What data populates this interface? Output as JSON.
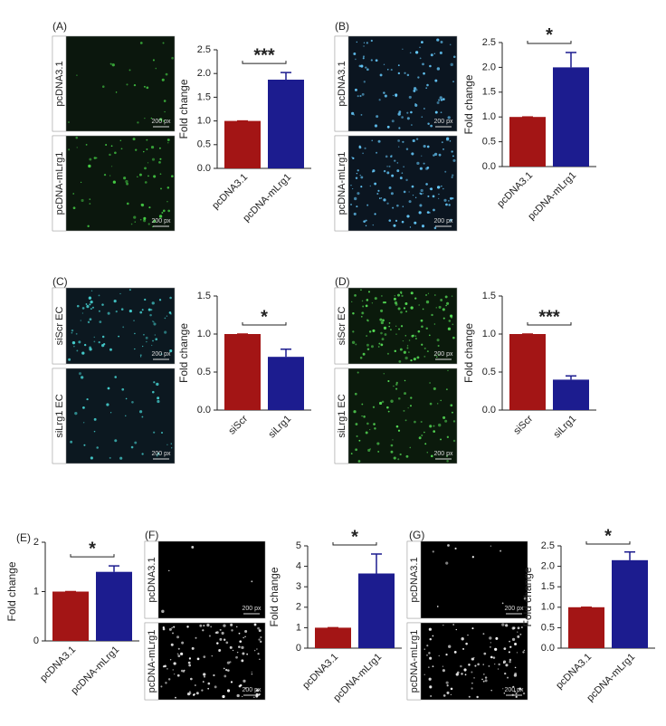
{
  "chart_data": [
    {
      "type": "bar",
      "panel": "(A)",
      "ylabel": "Fold change",
      "categories": [
        "pcDNA3.1",
        "pcDNA-mLrg1"
      ],
      "values": [
        1,
        1.87
      ],
      "errors": [
        0,
        0.15
      ],
      "colors": [
        "#a31515",
        "#1c1c8f"
      ],
      "ylim": [
        0,
        2.5
      ],
      "yticks": [
        {
          "value": 0,
          "label": "0.0"
        },
        0.5,
        {
          "value": 1,
          "label": "1.0"
        },
        1.5,
        {
          "value": 2,
          "label": "2.0"
        },
        2.5
      ],
      "significance": "***",
      "images": [
        {
          "label": "pcDNA3.1",
          "scale_bar": "200 px"
        },
        {
          "label": "pcDNA-mLrg1",
          "scale_bar": "200 px"
        }
      ]
    },
    {
      "type": "bar",
      "panel": "(B)",
      "ylabel": "Fold change",
      "categories": [
        "pcDNA3.1",
        "pcDNA-mLrg1"
      ],
      "values": [
        1,
        2.0
      ],
      "errors": [
        0,
        0.3
      ],
      "colors": [
        "#a31515",
        "#1c1c8f"
      ],
      "ylim": [
        0,
        2.5
      ],
      "yticks": [
        {
          "value": 0,
          "label": "0.0"
        },
        0.5,
        {
          "value": 1,
          "label": "1.0"
        },
        1.5,
        {
          "value": 2,
          "label": "2.0"
        },
        2.5
      ],
      "significance": "*",
      "images": [
        {
          "label": "pcDNA3.1",
          "scale_bar": "200 px"
        },
        {
          "label": "pcDNA-mLrg1",
          "scale_bar": "200 px"
        }
      ]
    },
    {
      "type": "bar",
      "panel": "(C)",
      "ylabel": "Fold change",
      "categories": [
        "siScr",
        "siLrg1"
      ],
      "values": [
        1,
        0.7
      ],
      "errors": [
        0,
        0.1
      ],
      "colors": [
        "#a31515",
        "#1c1c8f"
      ],
      "ylim": [
        0,
        1.5
      ],
      "yticks": [
        {
          "value": 0,
          "label": "0.0"
        },
        0.5,
        {
          "value": 1,
          "label": "1.0"
        },
        1.5
      ],
      "significance": "*",
      "images": [
        {
          "label": "siScr EC",
          "scale_bar": "200 px"
        },
        {
          "label": "siLrg1 EC",
          "scale_bar": "200 px"
        }
      ]
    },
    {
      "type": "bar",
      "panel": "(D)",
      "ylabel": "Fold change",
      "categories": [
        "siScr",
        "siLrg1"
      ],
      "values": [
        1,
        0.4
      ],
      "errors": [
        0,
        0.05
      ],
      "colors": [
        "#a31515",
        "#1c1c8f"
      ],
      "ylim": [
        0,
        1.5
      ],
      "yticks": [
        {
          "value": 0,
          "label": "0.0"
        },
        0.5,
        {
          "value": 1,
          "label": "1.0"
        },
        1.5
      ],
      "significance": "***",
      "images": [
        {
          "label": "siScr EC",
          "scale_bar": "200 px"
        },
        {
          "label": "siLrg1 EC",
          "scale_bar": "200 px"
        }
      ]
    },
    {
      "type": "bar",
      "panel": "(E)",
      "ylabel": "Fold change",
      "categories": [
        "pcDNA3.1",
        "pcDNA-mLrg1"
      ],
      "values": [
        1,
        1.4
      ],
      "errors": [
        0,
        0.12
      ],
      "colors": [
        "#a31515",
        "#1c1c8f"
      ],
      "ylim": [
        0,
        2
      ],
      "yticks": [
        0,
        1,
        2
      ],
      "significance": "*"
    },
    {
      "type": "bar",
      "panel": "(F)",
      "ylabel": "Fold change",
      "categories": [
        "pcDNA3.1",
        "pcDNA-mLrg1"
      ],
      "values": [
        1,
        3.65
      ],
      "errors": [
        0,
        0.95
      ],
      "colors": [
        "#a31515",
        "#1c1c8f"
      ],
      "ylim": [
        0,
        5
      ],
      "yticks": [
        0,
        1,
        2,
        3,
        4,
        5
      ],
      "significance": "*",
      "images": [
        {
          "label": "pcDNA3.1",
          "scale_bar": "200 px"
        },
        {
          "label": "pcDNA-mLrg1",
          "scale_bar": "200 px"
        }
      ]
    },
    {
      "type": "bar",
      "panel": "(G)",
      "ylabel": "Fold change",
      "categories": [
        "pcDNA3.1",
        "pcDNA-mLrg1"
      ],
      "values": [
        1,
        2.15
      ],
      "errors": [
        0,
        0.2
      ],
      "colors": [
        "#a31515",
        "#1c1c8f"
      ],
      "ylim": [
        0,
        2.5
      ],
      "yticks": [
        {
          "value": 0,
          "label": "0.0"
        },
        0.5,
        {
          "value": 1,
          "label": "1.0"
        },
        1.5,
        {
          "value": 2,
          "label": "2.0"
        },
        2.5
      ],
      "significance": "*",
      "images": [
        {
          "label": "pcDNA3.1",
          "scale_bar": "200 px"
        },
        {
          "label": "pcDNA-mLrg1",
          "scale_bar": "200 px"
        }
      ]
    }
  ]
}
